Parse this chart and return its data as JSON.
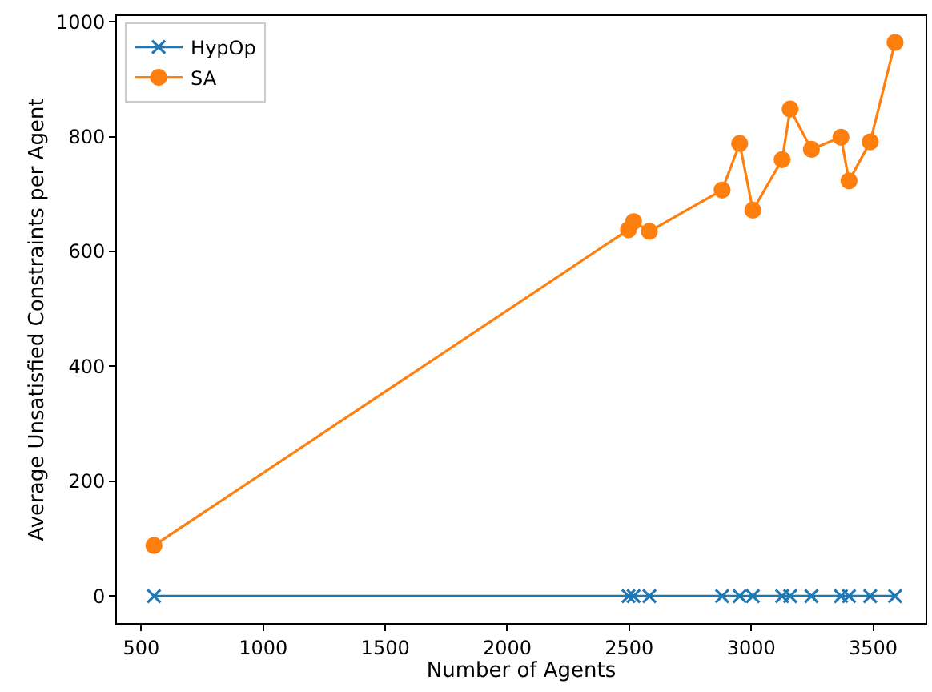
{
  "chart_data": {
    "type": "line",
    "xlabel": "Number of Agents",
    "ylabel": "Average Unsatisfied Constraints per Agent",
    "xlim": [
      400,
      3715
    ],
    "xticks": [
      500,
      1000,
      1500,
      2000,
      2500,
      3000,
      3500
    ],
    "ylim": [
      -47,
      1010
    ],
    "yticks": [
      0,
      200,
      400,
      600,
      800,
      1000
    ],
    "legend": "top left",
    "series": [
      {
        "name": "HypOp",
        "color": "#1f77b4",
        "marker": "cross",
        "x": [
          552,
          2497,
          2518,
          2583,
          2881,
          2953,
          3007,
          3127,
          3160,
          3247,
          3368,
          3401,
          3488,
          3590
        ],
        "values": [
          0,
          0,
          0,
          0,
          0,
          0,
          0,
          0,
          0,
          0,
          0,
          0,
          0,
          0
        ]
      },
      {
        "name": "SA",
        "color": "#ff7f0e",
        "marker": "circle",
        "x": [
          552,
          2497,
          2518,
          2583,
          2881,
          2953,
          3007,
          3127,
          3160,
          3247,
          3368,
          3401,
          3488,
          3590
        ],
        "values": [
          88,
          638,
          652,
          635,
          707,
          788,
          672,
          760,
          848,
          778,
          799,
          723,
          791,
          964
        ]
      }
    ]
  }
}
